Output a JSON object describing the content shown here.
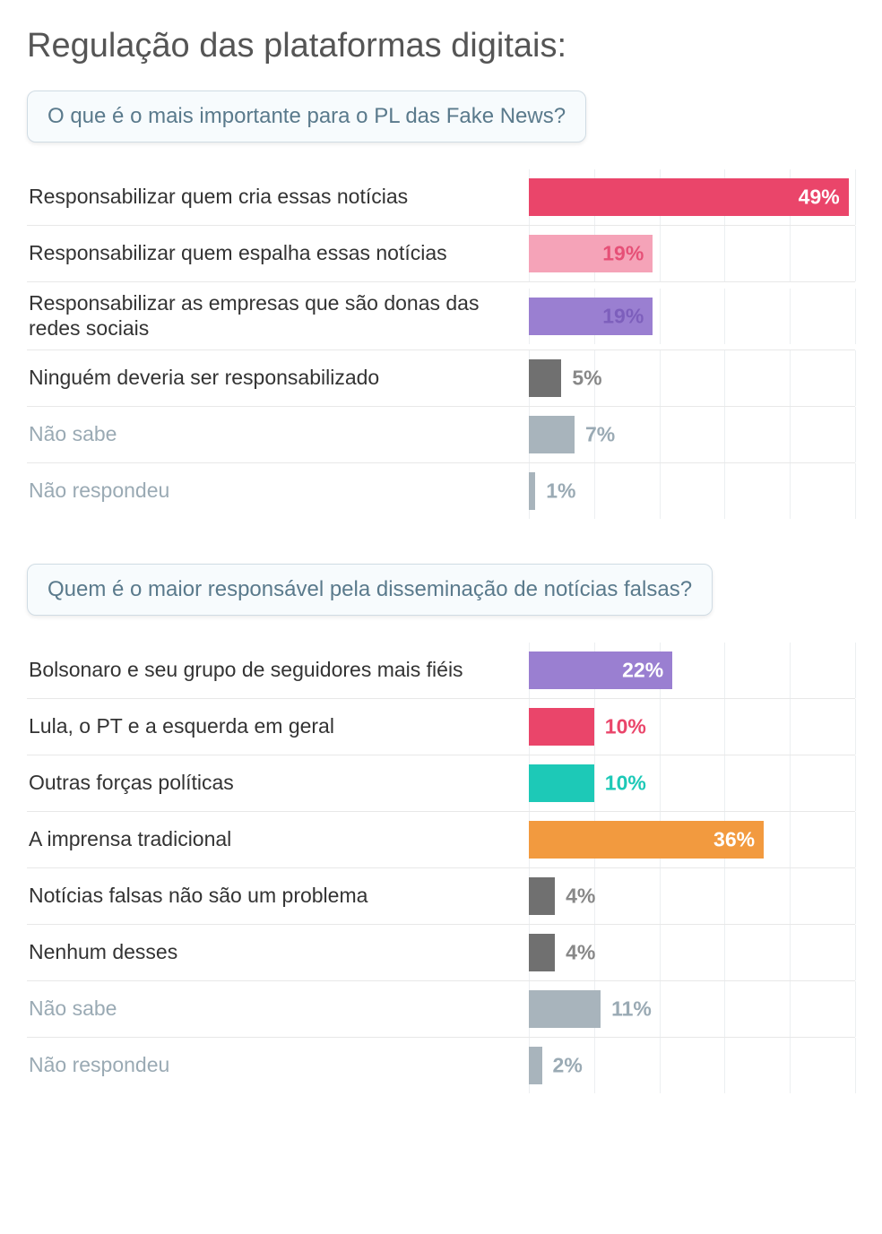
{
  "title": "Regulação das plataformas digitais:",
  "colors": {
    "grid": "#eceff1",
    "border": "#e8e8e8",
    "muted_text": "#9aaab4"
  },
  "grid_ticks_pct": [
    0,
    20,
    40,
    60,
    80,
    100
  ],
  "max_value": 50,
  "charts": [
    {
      "question": "O que é o mais importante para o PL das Fake News?",
      "rows": [
        {
          "label": "Responsabilizar quem cria essas notícias",
          "value": 49,
          "bar_color": "#ea456a",
          "value_inside": true,
          "value_color": "#ffffff",
          "muted": false
        },
        {
          "label": "Responsabilizar quem espalha essas notícias",
          "value": 19,
          "bar_color": "#f5a3b8",
          "value_inside": true,
          "value_color": "#e65077",
          "muted": false
        },
        {
          "label": "Responsabilizar as empresas que são donas das redes sociais",
          "value": 19,
          "bar_color": "#9a7fd1",
          "value_inside": true,
          "value_color": "#7d5fbc",
          "muted": false
        },
        {
          "label": "Ninguém deveria ser responsabilizado",
          "value": 5,
          "bar_color": "#707070",
          "value_inside": false,
          "value_color": "#888888",
          "muted": false
        },
        {
          "label": "Não sabe",
          "value": 7,
          "bar_color": "#a8b4bc",
          "value_inside": false,
          "value_color": "#9aaab4",
          "muted": true
        },
        {
          "label": "Não respondeu",
          "value": 1,
          "bar_color": "#a8b4bc",
          "value_inside": false,
          "value_color": "#9aaab4",
          "muted": true
        }
      ]
    },
    {
      "question": "Quem é o maior responsável pela disseminação de notícias falsas?",
      "rows": [
        {
          "label": "Bolsonaro e seu grupo de seguidores mais fiéis",
          "value": 22,
          "bar_color": "#9a7fd1",
          "value_inside": true,
          "value_color": "#ffffff",
          "muted": false
        },
        {
          "label": "Lula, o PT e a esquerda em geral",
          "value": 10,
          "bar_color": "#ea456a",
          "value_inside": false,
          "value_color": "#ea456a",
          "muted": false
        },
        {
          "label": "Outras forças políticas",
          "value": 10,
          "bar_color": "#1dc9b7",
          "value_inside": false,
          "value_color": "#1dc9b7",
          "muted": false
        },
        {
          "label": "A imprensa tradicional",
          "value": 36,
          "bar_color": "#f29a3f",
          "value_inside": true,
          "value_color": "#ffffff",
          "muted": false
        },
        {
          "label": "Notícias falsas não são um problema",
          "value": 4,
          "bar_color": "#707070",
          "value_inside": false,
          "value_color": "#888888",
          "muted": false
        },
        {
          "label": "Nenhum desses",
          "value": 4,
          "bar_color": "#707070",
          "value_inside": false,
          "value_color": "#888888",
          "muted": false
        },
        {
          "label": "Não sabe",
          "value": 11,
          "bar_color": "#a8b4bc",
          "value_inside": false,
          "value_color": "#9aaab4",
          "muted": true
        },
        {
          "label": "Não respondeu",
          "value": 2,
          "bar_color": "#a8b4bc",
          "value_inside": false,
          "value_color": "#9aaab4",
          "muted": true
        }
      ]
    }
  ]
}
